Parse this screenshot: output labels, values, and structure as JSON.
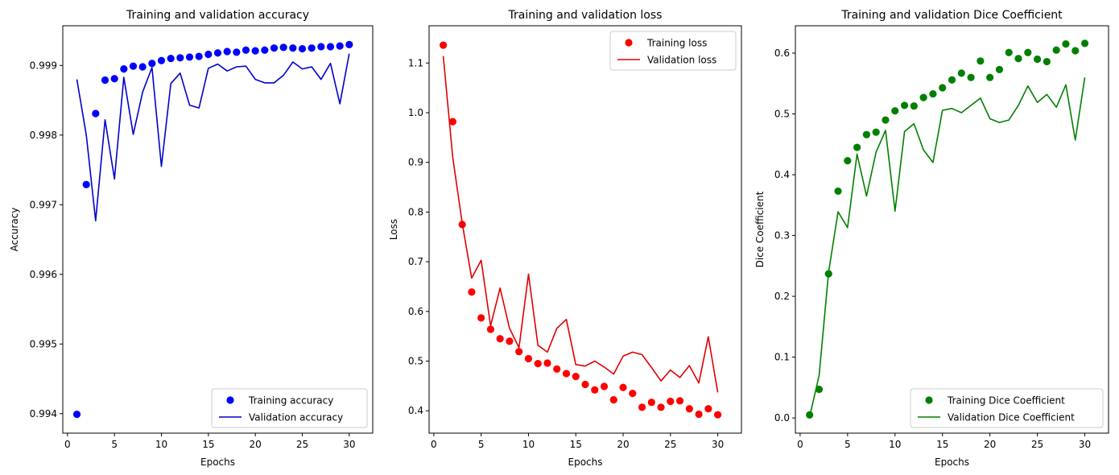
{
  "figure": {
    "background": "#ffffff"
  },
  "chart_data": [
    {
      "type": "line",
      "title": "Training and validation accuracy",
      "xlabel": "Epochs",
      "ylabel": "Accuracy",
      "xlim": [
        -0.5,
        32.5
      ],
      "ylim": [
        0.99372,
        0.99957
      ],
      "xticks": [
        0,
        5,
        10,
        15,
        20,
        25,
        30
      ],
      "yticks": [
        0.994,
        0.995,
        0.996,
        0.997,
        0.998,
        0.999
      ],
      "ytick_labels": [
        "0.994",
        "0.995",
        "0.996",
        "0.997",
        "0.998",
        "0.999"
      ],
      "legend": "lower-right",
      "x": [
        1,
        2,
        3,
        4,
        5,
        6,
        7,
        8,
        9,
        10,
        11,
        12,
        13,
        14,
        15,
        16,
        17,
        18,
        19,
        20,
        21,
        22,
        23,
        24,
        25,
        26,
        27,
        28,
        29,
        30
      ],
      "series": [
        {
          "name": "Training accuracy",
          "style": "points",
          "color": "#0000ff",
          "values": [
            0.99399,
            0.99729,
            0.99831,
            0.99879,
            0.99881,
            0.99895,
            0.99899,
            0.99898,
            0.99903,
            0.99907,
            0.9991,
            0.99911,
            0.99912,
            0.99913,
            0.99916,
            0.99918,
            0.9992,
            0.99919,
            0.99922,
            0.99921,
            0.99922,
            0.99925,
            0.99926,
            0.99925,
            0.99924,
            0.99925,
            0.99927,
            0.99927,
            0.99928,
            0.9993
          ]
        },
        {
          "name": "Validation accuracy",
          "style": "line",
          "color": "#0000cd",
          "values": [
            0.9988,
            0.998,
            0.99677,
            0.99822,
            0.99737,
            0.99883,
            0.99801,
            0.99862,
            0.99897,
            0.99755,
            0.99874,
            0.99889,
            0.99843,
            0.99839,
            0.99896,
            0.99902,
            0.99892,
            0.99898,
            0.99899,
            0.9988,
            0.99875,
            0.99875,
            0.99886,
            0.99905,
            0.99895,
            0.99898,
            0.9988,
            0.99903,
            0.99845,
            0.99917
          ]
        }
      ]
    },
    {
      "type": "line",
      "title": "Training and validation loss",
      "xlabel": "Epochs",
      "ylabel": "Loss",
      "xlim": [
        -0.5,
        32.5
      ],
      "ylim": [
        0.355,
        1.175
      ],
      "xticks": [
        0,
        5,
        10,
        15,
        20,
        25,
        30
      ],
      "yticks": [
        0.4,
        0.5,
        0.6,
        0.7,
        0.8,
        0.9,
        1.0,
        1.1
      ],
      "ytick_labels": [
        "0.4",
        "0.5",
        "0.6",
        "0.7",
        "0.8",
        "0.9",
        "1.0",
        "1.1"
      ],
      "legend": "upper-right",
      "x": [
        1,
        2,
        3,
        4,
        5,
        6,
        7,
        8,
        9,
        10,
        11,
        12,
        13,
        14,
        15,
        16,
        17,
        18,
        19,
        20,
        21,
        22,
        23,
        24,
        25,
        26,
        27,
        28,
        29,
        30
      ],
      "series": [
        {
          "name": "Training loss",
          "style": "points",
          "color": "#ff0000",
          "values": [
            1.136,
            0.982,
            0.775,
            0.639,
            0.587,
            0.564,
            0.545,
            0.54,
            0.519,
            0.505,
            0.495,
            0.496,
            0.484,
            0.475,
            0.469,
            0.453,
            0.442,
            0.449,
            0.422,
            0.447,
            0.435,
            0.407,
            0.417,
            0.407,
            0.419,
            0.42,
            0.404,
            0.393,
            0.404,
            0.392
          ]
        },
        {
          "name": "Validation loss",
          "style": "line",
          "color": "#e00000",
          "values": [
            1.114,
            0.91,
            0.777,
            0.667,
            0.703,
            0.571,
            0.647,
            0.566,
            0.527,
            0.675,
            0.532,
            0.518,
            0.566,
            0.584,
            0.493,
            0.49,
            0.5,
            0.488,
            0.474,
            0.51,
            0.518,
            0.513,
            0.487,
            0.46,
            0.482,
            0.467,
            0.491,
            0.456,
            0.549,
            0.437
          ]
        }
      ]
    },
    {
      "type": "line",
      "title": "Training and validation Dice Coefficient",
      "xlabel": "Epochs",
      "ylabel": "Dice Coefficient",
      "xlim": [
        -0.5,
        32.5
      ],
      "ylim": [
        -0.025,
        0.645
      ],
      "xticks": [
        0,
        5,
        10,
        15,
        20,
        25,
        30
      ],
      "yticks": [
        0.0,
        0.1,
        0.2,
        0.3,
        0.4,
        0.5,
        0.6
      ],
      "ytick_labels": [
        "0.0",
        "0.1",
        "0.2",
        "0.3",
        "0.4",
        "0.5",
        "0.6"
      ],
      "legend": "lower-right",
      "x": [
        1,
        2,
        3,
        4,
        5,
        6,
        7,
        8,
        9,
        10,
        11,
        12,
        13,
        14,
        15,
        16,
        17,
        18,
        19,
        20,
        21,
        22,
        23,
        24,
        25,
        26,
        27,
        28,
        29,
        30
      ],
      "series": [
        {
          "name": "Training Dice Coefficient",
          "style": "points",
          "color": "#008000",
          "values": [
            0.005,
            0.047,
            0.237,
            0.373,
            0.423,
            0.445,
            0.466,
            0.47,
            0.49,
            0.505,
            0.514,
            0.513,
            0.527,
            0.533,
            0.543,
            0.556,
            0.567,
            0.56,
            0.587,
            0.56,
            0.573,
            0.601,
            0.591,
            0.601,
            0.59,
            0.586,
            0.605,
            0.615,
            0.604,
            0.616
          ]
        },
        {
          "name": "Validation Dice Coefficient",
          "style": "line",
          "color": "#008000",
          "values": [
            0.002,
            0.07,
            0.24,
            0.339,
            0.313,
            0.434,
            0.365,
            0.437,
            0.473,
            0.34,
            0.471,
            0.484,
            0.441,
            0.42,
            0.506,
            0.509,
            0.502,
            0.514,
            0.526,
            0.492,
            0.486,
            0.49,
            0.514,
            0.546,
            0.519,
            0.532,
            0.511,
            0.548,
            0.457,
            0.56
          ]
        }
      ]
    }
  ]
}
